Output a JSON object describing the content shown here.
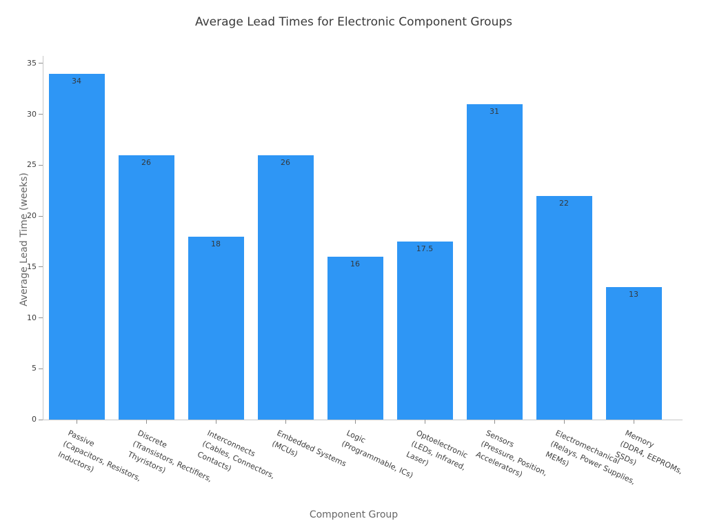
{
  "figure": {
    "background": "#ffffff"
  },
  "chart_data": {
    "type": "bar",
    "title": "Average Lead Times for Electronic Component Groups",
    "xlabel": "Component Group",
    "ylabel": "Average Lead Time (weeks)",
    "categories": [
      "Passive\n(Capacitors, Resistors,\nInductors)",
      "Discrete\n(Transistors, Rectifiers,\nThyristors)",
      "Interconnects\n(Cables, Connectors,\nContacts)",
      "Embedded Systems\n(MCUs)",
      "Logic\n(Programmable, ICs)",
      "Optoelectronic\n(LEDs, Infrared,\nLaser)",
      "Sensors\n(Pressure, Position,\nAccelerators)",
      "Electromechanical\n(Relays, Power Supplies,\nMEMs)",
      "Memory\n(DDR4, EEPROMs,\nSSDs)"
    ],
    "values": [
      34,
      26,
      18,
      26,
      16,
      17.5,
      31,
      22,
      13
    ],
    "yticks": [
      0,
      5,
      10,
      15,
      20,
      25,
      30,
      35
    ],
    "ylim": [
      0,
      36
    ],
    "grid": false,
    "colors": {
      "bar": "#2e96f5",
      "title": "#3a3a3a",
      "axis_label": "#666666",
      "tick_label": "#3c3c3c",
      "value_label": "#33383d",
      "spine": "#c6c6c6",
      "tick_mark": "#8f8f8f",
      "background": "#ffffff"
    }
  }
}
